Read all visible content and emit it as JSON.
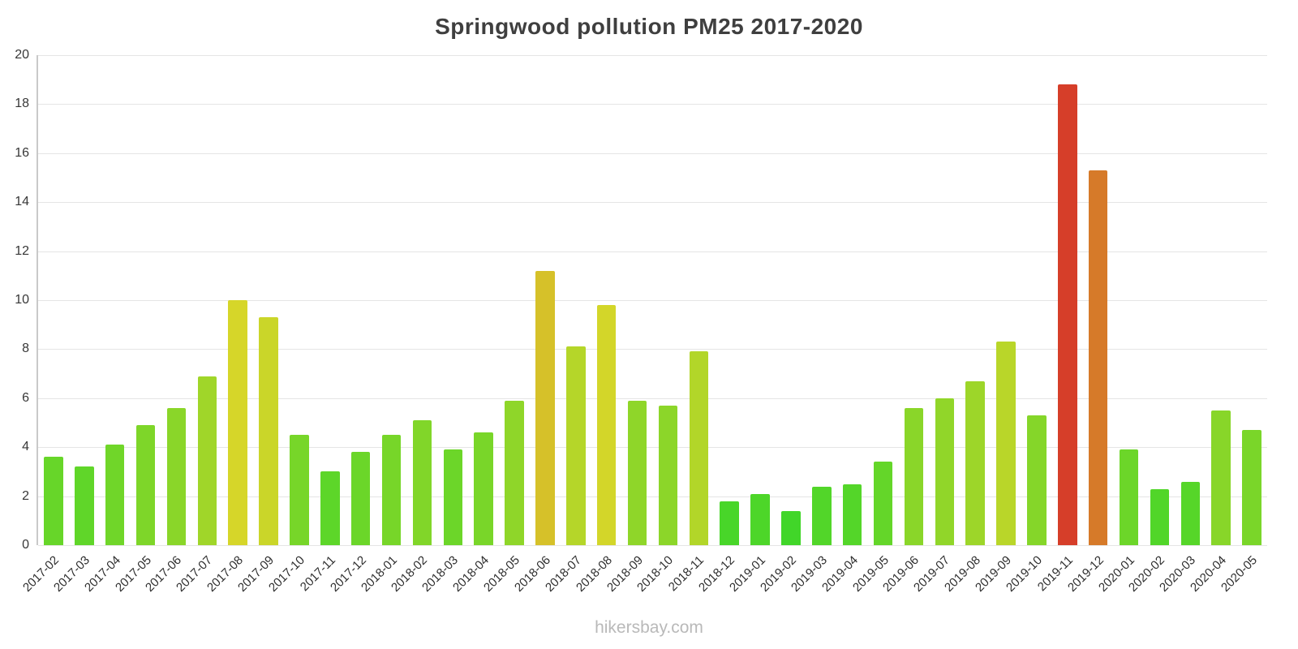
{
  "watermark": "hikersbay.com",
  "chart_data": {
    "type": "bar",
    "title": "Springwood pollution PM25 2017-2020",
    "xlabel": "",
    "ylabel": "",
    "ylim": [
      0,
      20
    ],
    "ytick_step": 2,
    "grid": true,
    "legend": "none",
    "categories": [
      "2017-02",
      "2017-03",
      "2017-04",
      "2017-05",
      "2017-06",
      "2017-07",
      "2017-08",
      "2017-09",
      "2017-10",
      "2017-11",
      "2017-12",
      "2018-01",
      "2018-02",
      "2018-03",
      "2018-04",
      "2018-05",
      "2018-06",
      "2018-07",
      "2018-08",
      "2018-09",
      "2018-10",
      "2018-11",
      "2018-12",
      "2019-01",
      "2019-02",
      "2019-03",
      "2019-04",
      "2019-05",
      "2019-06",
      "2019-07",
      "2019-08",
      "2019-09",
      "2019-10",
      "2019-11",
      "2019-12",
      "2020-01",
      "2020-02",
      "2020-03",
      "2020-04",
      "2020-05"
    ],
    "values": [
      3.6,
      3.2,
      4.1,
      4.9,
      5.6,
      6.9,
      10.0,
      9.3,
      4.5,
      3.0,
      3.8,
      4.5,
      5.1,
      3.9,
      4.6,
      5.9,
      11.2,
      8.1,
      9.8,
      5.9,
      5.7,
      7.9,
      1.8,
      2.1,
      1.4,
      2.4,
      2.5,
      3.4,
      5.6,
      6.0,
      6.7,
      8.3,
      5.3,
      18.8,
      15.3,
      3.9,
      2.3,
      2.6,
      5.5,
      4.7
    ],
    "color_rule": {
      "description": "bar color mapped to value: green (low) through yellow/orange to red (high)",
      "hue_at_min": 120,
      "hue_at_max": 0,
      "saturation_pct": 68,
      "lightness_pct": 50,
      "example_low_hex": "#4fd32b",
      "example_mid_hex": "#d2cb2a",
      "example_high_hex": "#da4a2b"
    }
  }
}
